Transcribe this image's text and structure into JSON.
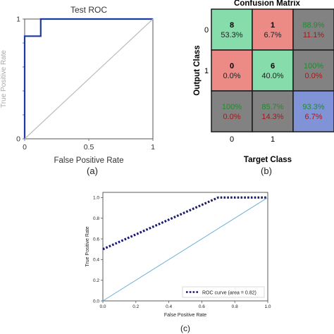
{
  "chart_data": [
    {
      "panel": "(a)",
      "type": "line",
      "title": "Test ROC",
      "xlabel": "False Positive Rate",
      "ylabel": "True Positive Rate",
      "xlim": [
        0,
        1
      ],
      "ylim": [
        0,
        1
      ],
      "xticks": [
        "0",
        "0.5",
        "1"
      ],
      "yticks": [
        "0",
        "0.2",
        "0.4",
        "0.6",
        "0.8",
        "1"
      ],
      "grid": false,
      "series": [
        {
          "color": "#1f3a9e",
          "x": [
            0,
            0,
            0.125,
            0.125,
            1
          ],
          "y": [
            0,
            0.857,
            0.857,
            1,
            1
          ]
        },
        {
          "color": "#bdbdbd",
          "x": [
            0,
            1
          ],
          "y": [
            0,
            1
          ]
        }
      ]
    },
    {
      "panel": "(b)",
      "type": "heatmap",
      "title": "Confusion Matrix",
      "xlabel": "Target Class",
      "ylabel": "Output Class",
      "row_labels": [
        "0",
        "1"
      ],
      "col_labels": [
        "0",
        "1"
      ],
      "cells": [
        [
          {
            "top": "8",
            "bottom": "53.3%",
            "color": "#86dcaa",
            "top_color": "#000000",
            "bottom_color": "#222222"
          },
          {
            "top": "1",
            "bottom": "6.7%",
            "color": "#ec8a86",
            "top_color": "#000000",
            "bottom_color": "#222222"
          },
          {
            "top": "88.9%",
            "bottom": "11.1%",
            "color": "#828282",
            "top_color": "#1e8c2e",
            "bottom_color": "#9e1b1b"
          }
        ],
        [
          {
            "top": "0",
            "bottom": "0.0%",
            "color": "#ec8a86",
            "top_color": "#000000",
            "bottom_color": "#222222"
          },
          {
            "top": "6",
            "bottom": "40.0%",
            "color": "#86dcaa",
            "top_color": "#000000",
            "bottom_color": "#222222"
          },
          {
            "top": "100%",
            "bottom": "0.0%",
            "color": "#828282",
            "top_color": "#1e8c2e",
            "bottom_color": "#9e1b1b"
          }
        ],
        [
          {
            "top": "100%",
            "bottom": "0.0%",
            "color": "#828282",
            "top_color": "#1e8c2e",
            "bottom_color": "#9e1b1b"
          },
          {
            "top": "85.7%",
            "bottom": "14.3%",
            "color": "#828282",
            "top_color": "#1e8c2e",
            "bottom_color": "#9e1b1b"
          },
          {
            "top": "93.3%",
            "bottom": "6.7%",
            "color": "#7f93d6",
            "top_color": "#1e8c2e",
            "bottom_color": "#9e1b1b"
          }
        ]
      ]
    },
    {
      "panel": "(c)",
      "type": "line",
      "xlabel": "False Positive Rate",
      "ylabel": "True Positive Rate",
      "xlim": [
        0,
        1
      ],
      "ylim": [
        0,
        1.05
      ],
      "xticks": [
        "0.0",
        "0.2",
        "0.4",
        "0.6",
        "0.8",
        "1.0"
      ],
      "yticks": [
        "0.0",
        "0.2",
        "0.4",
        "0.6",
        "0.8",
        "1.0"
      ],
      "legend_position": "bottom-right",
      "grid": false,
      "series": [
        {
          "name": "ROC curve (area = 0.82)",
          "color": "#1b1b6e",
          "style": "dotted",
          "x": [
            0,
            0.7,
            1
          ],
          "y": [
            0.5,
            1,
            1
          ]
        },
        {
          "color": "#6aaed6",
          "style": "solid",
          "x": [
            0,
            1
          ],
          "y": [
            0,
            1
          ]
        }
      ]
    }
  ],
  "captions": {
    "a": "(a)",
    "b": "(b)",
    "c": "(c)"
  }
}
